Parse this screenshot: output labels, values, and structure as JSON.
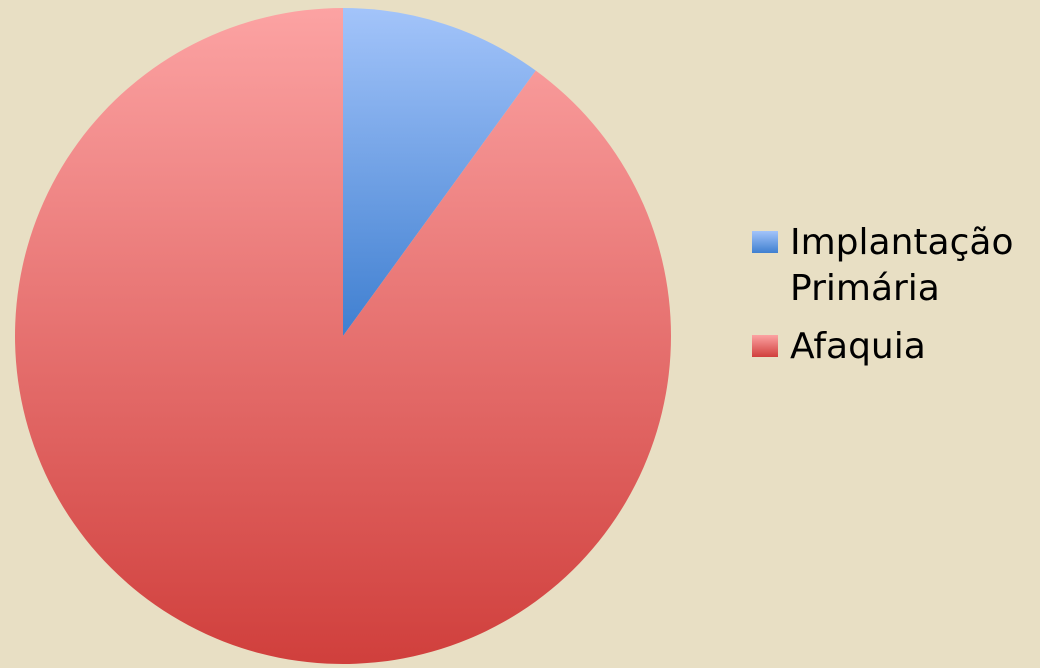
{
  "chart_data": {
    "type": "pie",
    "categories": [
      "Implantação Primária",
      "Afaquia"
    ],
    "values": [
      10,
      90
    ],
    "legend_labels": [
      "Implantação\nPrimária",
      "Afaquia"
    ],
    "colors": [
      "#8fb6f4",
      "#f29593"
    ],
    "gradient_colors": [
      [
        "#a3c4fa",
        "#3f7fd0"
      ],
      [
        "#fca3a3",
        "#d03f3c"
      ]
    ],
    "legend_position": "right",
    "start_angle": "12 o'clock",
    "direction": "clockwise"
  }
}
